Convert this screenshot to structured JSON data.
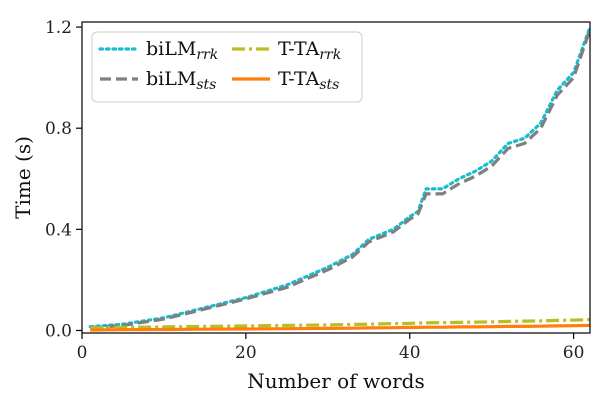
{
  "chart_data": {
    "type": "line",
    "title": "",
    "xlabel": "Number of words",
    "ylabel": "Time (s)",
    "xlim": [
      0,
      62
    ],
    "ylim": [
      -0.01,
      1.22
    ],
    "xticks": [
      0,
      20,
      40,
      60
    ],
    "xtick_labels": [
      "0",
      "20",
      "40",
      "60"
    ],
    "yticks": [
      0.0,
      0.4,
      0.8,
      1.2
    ],
    "ytick_labels": [
      "0.0",
      "0.4",
      "0.8",
      "1.2"
    ],
    "grid": false,
    "legend_position": "top-left",
    "x": [
      1,
      5,
      10,
      15,
      20,
      25,
      30,
      33,
      35,
      38,
      40,
      41,
      42,
      44,
      46,
      48,
      50,
      52,
      54,
      56,
      58,
      60,
      62
    ],
    "series": [
      {
        "name": "biLM",
        "name_sub": "rrk",
        "color": "#17becf",
        "dash": "dotted",
        "values": [
          0.015,
          0.025,
          0.05,
          0.09,
          0.13,
          0.18,
          0.25,
          0.3,
          0.36,
          0.4,
          0.45,
          0.47,
          0.56,
          0.56,
          0.6,
          0.63,
          0.67,
          0.74,
          0.76,
          0.82,
          0.95,
          1.02,
          1.2
        ]
      },
      {
        "name": "biLM",
        "name_sub": "sts",
        "color": "#7f7f7f",
        "dash": "dashed",
        "values": [
          0.01,
          0.02,
          0.045,
          0.085,
          0.125,
          0.17,
          0.24,
          0.29,
          0.35,
          0.39,
          0.44,
          0.46,
          0.54,
          0.54,
          0.58,
          0.61,
          0.65,
          0.72,
          0.74,
          0.8,
          0.93,
          1.0,
          1.19
        ]
      },
      {
        "name": "T-TA",
        "name_sub": "rrk",
        "color": "#bcbd22",
        "dash": "dashdot",
        "values": [
          0.01,
          0.012,
          0.014,
          0.016,
          0.018,
          0.02,
          0.022,
          0.024,
          0.025,
          0.027,
          0.028,
          0.029,
          0.03,
          0.031,
          0.032,
          0.033,
          0.034,
          0.036,
          0.037,
          0.038,
          0.04,
          0.041,
          0.043
        ]
      },
      {
        "name": "T-TA",
        "name_sub": "sts",
        "color": "#ff7f0e",
        "dash": "solid",
        "values": [
          0.002,
          0.003,
          0.004,
          0.005,
          0.006,
          0.007,
          0.008,
          0.009,
          0.01,
          0.011,
          0.012,
          0.012,
          0.013,
          0.013,
          0.014,
          0.014,
          0.015,
          0.016,
          0.016,
          0.017,
          0.018,
          0.019,
          0.02
        ]
      }
    ]
  }
}
